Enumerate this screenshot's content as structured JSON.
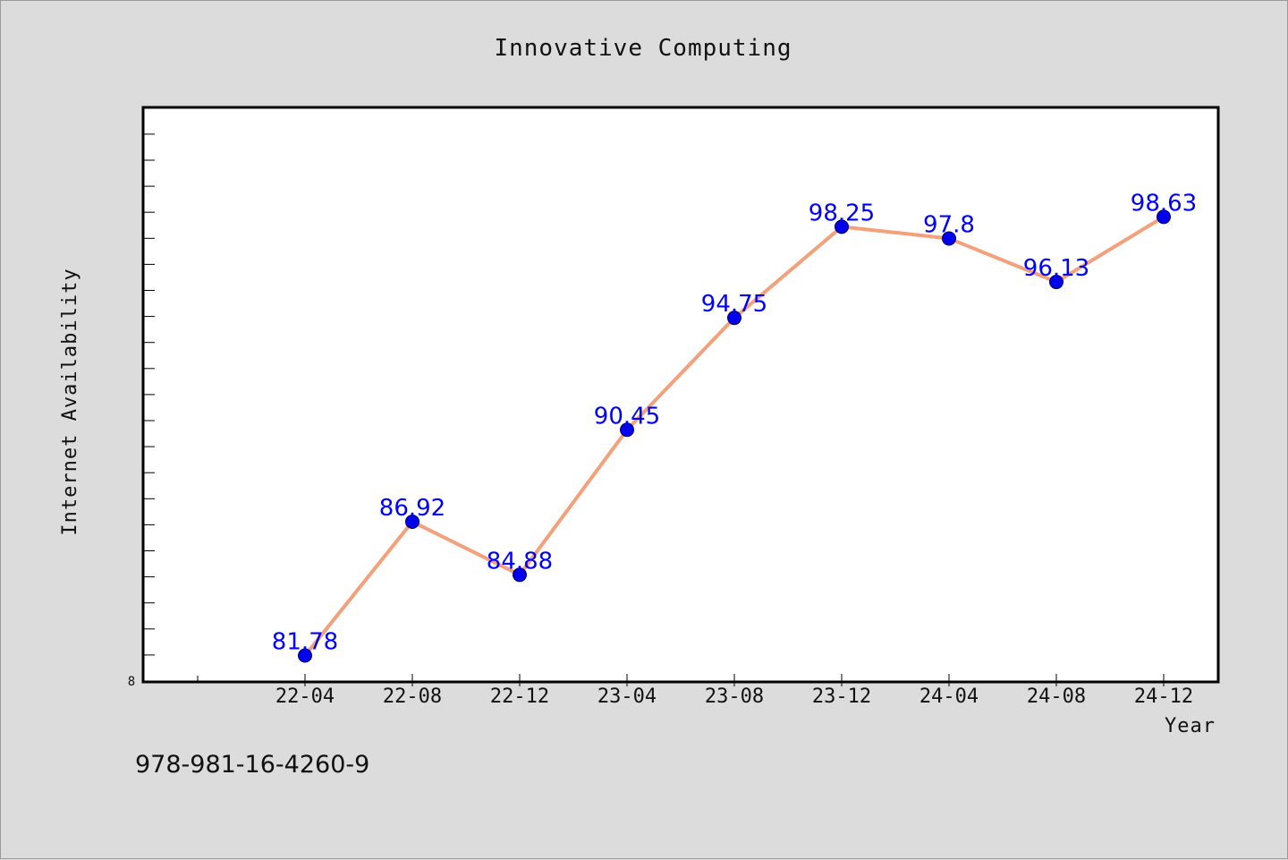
{
  "chart_data": {
    "type": "line",
    "title": "Innovative Computing",
    "xlabel": "Year",
    "ylabel": "Internet Availability",
    "categories": [
      "22-04",
      "22-08",
      "22-12",
      "23-04",
      "23-08",
      "23-12",
      "24-04",
      "24-08",
      "24-12"
    ],
    "series": [
      {
        "values": [
          81.78,
          86.92,
          84.88,
          90.45,
          94.75,
          98.25,
          97.8,
          96.13,
          98.63
        ]
      }
    ],
    "data_labels": [
      "81.78",
      "86.92",
      "84.88",
      "90.45",
      "94.75",
      "98.25",
      "97.8",
      "96.13",
      "98.63"
    ],
    "y_tick_label": "8",
    "ylim": [
      80.8,
      102.8
    ],
    "grid": false,
    "legend": "none",
    "colors": {
      "line": "#f4a07a",
      "marker": "#0000ee",
      "data_label": "#0000ff",
      "plot_background": "#ffffff",
      "page_background": "#dcdcdc"
    }
  },
  "footer": {
    "isbn": "978-981-16-4260-9"
  }
}
